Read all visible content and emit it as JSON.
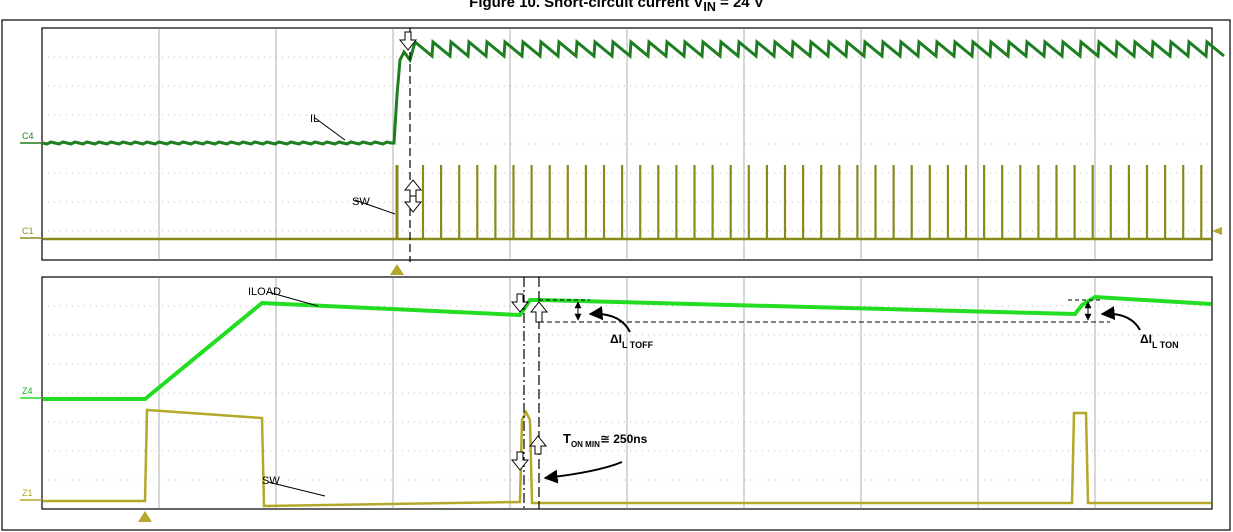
{
  "figure": {
    "title": "Figure 10. Short-circuit current V",
    "title_sub": "IN",
    "title_tail": " = 24 V"
  },
  "chart_data": [
    {
      "type": "line",
      "panel": "top",
      "series": [
        {
          "name": "IL",
          "channel": "C4",
          "color": "#1e7d1e"
        },
        {
          "name": "SW",
          "channel": "C1",
          "color": "#8a8a1c"
        }
      ]
    },
    {
      "type": "line",
      "panel": "bottom",
      "series": [
        {
          "name": "ILOAD",
          "channel": "Z4",
          "color": "#22dd22"
        },
        {
          "name": "SW",
          "channel": "Z1",
          "color": "#b3a82a"
        }
      ],
      "annotations": {
        "delta_toff": {
          "main": "ΔI",
          "sub": "L TOFF"
        },
        "delta_ton": {
          "main": "ΔI",
          "sub": "L TON"
        },
        "ton_min": {
          "main": "T",
          "sub": "ON MIN",
          "tail": "≅ 250ns"
        }
      }
    }
  ],
  "colors": {
    "grid": "#7a7a7a",
    "frame": "#000000",
    "trace_il": "#1e7d1e",
    "trace_sw_top": "#8a8a1c",
    "trace_iload": "#22dd22",
    "trace_sw_bottom": "#b3a82a",
    "marker": "#b3a82a"
  }
}
